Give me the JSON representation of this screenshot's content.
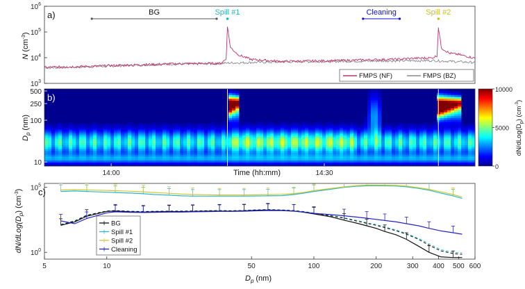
{
  "figure": {
    "panel_labels": [
      "a)",
      "b)",
      "c)"
    ]
  },
  "chart_data": [
    {
      "type": "line",
      "panel": "a)",
      "xlabel": "",
      "ylabel_main": "N",
      "ylabel_unit": "(cm",
      "ylabel_exp": "-3",
      "ylabel_close": ")",
      "yscale": "log",
      "ylim": [
        1000,
        1000000
      ],
      "yticks": [
        {
          "base": "10",
          "exp": "3",
          "value": 1000
        },
        {
          "base": "10",
          "exp": "4",
          "value": 10000
        },
        {
          "base": "10",
          "exp": "5",
          "value": 100000
        },
        {
          "base": "10",
          "exp": "6",
          "value": 1000000
        }
      ],
      "time_range_min": [
        0,
        100
      ],
      "annotations": [
        {
          "label": "BG",
          "type": "range",
          "start_min": 11,
          "end_min": 40,
          "color": "#555555"
        },
        {
          "label": "Spill #1",
          "type": "point",
          "at_min": 42.5,
          "color": "#1fb5b5"
        },
        {
          "label": "Cleaning",
          "type": "range",
          "start_min": 74,
          "end_min": 82.5,
          "color": "#1010cc"
        },
        {
          "label": "Spill #2",
          "type": "point",
          "at_min": 91.5,
          "color": "#c8c020"
        }
      ],
      "series": [
        {
          "name": "FMPS (NF)",
          "color": "#c0336e",
          "points": [
            [
              0,
              4200
            ],
            [
              10,
              4600
            ],
            [
              20,
              5200
            ],
            [
              30,
              5800
            ],
            [
              41,
              6000
            ],
            [
              42.2,
              9000
            ],
            [
              42.5,
              160000
            ],
            [
              43.2,
              25000
            ],
            [
              45,
              13000
            ],
            [
              48,
              8500
            ],
            [
              55,
              7200
            ],
            [
              65,
              7500
            ],
            [
              75,
              8200
            ],
            [
              82,
              8700
            ],
            [
              85,
              9300
            ],
            [
              90,
              9800
            ],
            [
              91.2,
              12000
            ],
            [
              91.5,
              150000
            ],
            [
              92.2,
              24000
            ],
            [
              94,
              15000
            ],
            [
              96,
              13500
            ],
            [
              100,
              9500
            ]
          ]
        },
        {
          "name": "FMPS (BZ)",
          "color": "#8a8a8a",
          "points": [
            [
              0,
              4000
            ],
            [
              10,
              4400
            ],
            [
              20,
              5000
            ],
            [
              30,
              5600
            ],
            [
              40,
              5900
            ],
            [
              42.5,
              6200
            ],
            [
              50,
              6600
            ],
            [
              60,
              7000
            ],
            [
              70,
              7200
            ],
            [
              80,
              7500
            ],
            [
              90,
              7700
            ],
            [
              100,
              6500
            ]
          ]
        }
      ]
    },
    {
      "type": "heatmap",
      "panel": "b)",
      "xlabel": "Time (hh:mm)",
      "xticks": [
        {
          "label": "14:00",
          "at_min": 15.5
        },
        {
          "label": "14:30",
          "at_min": 65
        }
      ],
      "ylabel_main": "D",
      "ylabel_sub": "p",
      "ylabel_unit": "(nm)",
      "yticks": [
        10,
        100,
        250,
        500
      ],
      "ylim": [
        8,
        560
      ],
      "colorbar": {
        "label_main": "dN/dLog(D",
        "label_sub": "p",
        "label_close": ") (cm",
        "label_exp": "-3",
        "label_end": ")",
        "range": [
          0,
          10000
        ],
        "ticks": [
          0,
          5000,
          10000
        ],
        "colors": [
          "#00008f",
          "#0000ff",
          "#0080ff",
          "#00ffff",
          "#80ff80",
          "#ffff00",
          "#ff8000",
          "#ff0000",
          "#800000"
        ]
      },
      "events_min": [
        42.5,
        91.5
      ],
      "description_values": {
        "background_band_nm": [
          10,
          80
        ],
        "spill1_plume": {
          "start_min": 42.5,
          "end_min": 45.5,
          "dp_range_nm": [
            100,
            450
          ],
          "peak_nm": 230
        },
        "spill2_plume": {
          "start_min": 91.5,
          "end_min": 96.5,
          "dp_range_nm": [
            100,
            430
          ],
          "peak_nm": 220
        }
      }
    },
    {
      "type": "line",
      "panel": "c)",
      "xlabel_main": "D",
      "xlabel_sub": "p",
      "xlabel_unit": "(nm)",
      "xscale": "log",
      "xlim": [
        5,
        600
      ],
      "xticks": [
        5,
        10,
        50,
        100,
        200,
        300,
        400,
        500,
        600
      ],
      "ylabel_main": "dN/dLog(D",
      "ylabel_sub": "p",
      "ylabel_close": ") (cm",
      "ylabel_exp": "-3",
      "ylabel_end": ")",
      "yscale": "log",
      "ylim": [
        0.3,
        200000
      ],
      "yticks": [
        {
          "base": "10",
          "exp": "0",
          "value": 1
        },
        {
          "base": "10",
          "exp": "5",
          "value": 100000
        }
      ],
      "x": [
        6,
        7,
        8,
        10,
        11,
        13,
        15,
        17,
        20,
        23,
        26,
        30,
        35,
        40,
        46,
        52,
        60,
        70,
        80,
        90,
        100,
        120,
        140,
        160,
        180,
        200,
        220,
        250,
        280,
        320,
        360,
        410,
        470,
        520
      ],
      "series": [
        {
          "name": "BG",
          "color": "#111111",
          "values": [
            120,
            220,
            600,
            1400,
            1500,
            1300,
            1250,
            1300,
            1350,
            1350,
            1400,
            1450,
            1500,
            1450,
            1550,
            1700,
            1800,
            1700,
            1500,
            1200,
            900,
            550,
            300,
            180,
            110,
            70,
            40,
            22,
            10,
            3,
            1,
            0.45,
            0.4,
            0.4
          ]
        },
        {
          "name": "Spill #1",
          "color": "#2ab8c8",
          "values": [
            48000,
            52000,
            48000,
            42000,
            40000,
            36000,
            32000,
            28000,
            25000,
            22000,
            21000,
            21000,
            21000,
            21000,
            21000,
            21500,
            22000,
            23000,
            28000,
            36000,
            48000,
            70000,
            100000,
            120000,
            130000,
            132000,
            130000,
            125000,
            110000,
            82000,
            60000,
            36000,
            22000,
            14000
          ]
        },
        {
          "name": "Spill #2",
          "color": "#d0c838",
          "values": [
            62000,
            66000,
            62000,
            58000,
            55000,
            50000,
            45000,
            40000,
            35000,
            30000,
            28000,
            27000,
            26000,
            26000,
            26000,
            26500,
            27500,
            29000,
            33000,
            42000,
            56000,
            80000,
            110000,
            135000,
            148000,
            150000,
            147000,
            140000,
            125000,
            95000,
            70000,
            45000,
            28000,
            18000
          ]
        },
        {
          "name": "Cleaning",
          "color": "#2222cc",
          "values": [
            260,
            160,
            400,
            1100,
            1300,
            1200,
            1150,
            1200,
            1250,
            1250,
            1300,
            1350,
            1400,
            1400,
            1450,
            1550,
            1650,
            1600,
            1450,
            1250,
            1000,
            800,
            650,
            520,
            420,
            340,
            280,
            220,
            160,
            110,
            70,
            45,
            32,
            25
          ]
        },
        {
          "name": "",
          "color": "#111111",
          "dashed": true,
          "values": [
            130,
            250,
            700,
            1500,
            1600,
            1400,
            1350,
            1400,
            1450,
            1450,
            1500,
            1550,
            1600,
            1550,
            1650,
            1800,
            1900,
            1800,
            1600,
            1300,
            1000,
            650,
            420,
            260,
            170,
            120,
            80,
            45,
            25,
            10,
            3.5,
            1.3,
            0.8,
            0.7
          ]
        },
        {
          "name": "",
          "color": "#2ab8c8",
          "dashed": true,
          "values": [
            140,
            270,
            720,
            1550,
            1650,
            1450,
            1400,
            1450,
            1500,
            1500,
            1550,
            1600,
            1650,
            1600,
            1700,
            1850,
            1950,
            1850,
            1650,
            1350,
            1050,
            700,
            460,
            290,
            190,
            135,
            90,
            52,
            28,
            12,
            4.5,
            1.6,
            1,
            0.9
          ]
        }
      ]
    }
  ]
}
